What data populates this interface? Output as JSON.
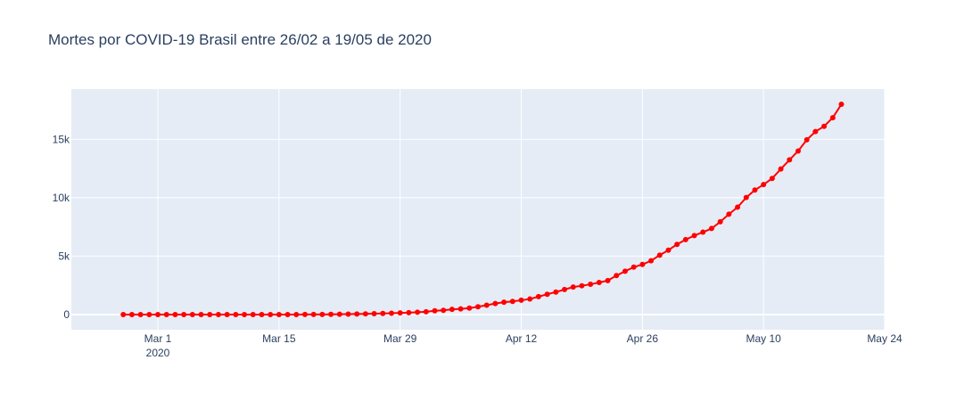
{
  "chart_data": {
    "type": "line",
    "title": "Mortes por COVID-19 Brasil entre 26/02 a 19/05 de 2020",
    "xlabel": "",
    "ylabel": "",
    "x_axis": {
      "type": "date",
      "range": [
        "2020-02-20",
        "2020-05-24"
      ],
      "ticks": [
        {
          "value": "2020-03-01",
          "label": "Mar 1",
          "sublabel": "2020"
        },
        {
          "value": "2020-03-15",
          "label": "Mar 15",
          "sublabel": ""
        },
        {
          "value": "2020-03-29",
          "label": "Mar 29",
          "sublabel": ""
        },
        {
          "value": "2020-04-12",
          "label": "Apr 12",
          "sublabel": ""
        },
        {
          "value": "2020-04-26",
          "label": "Apr 26",
          "sublabel": ""
        },
        {
          "value": "2020-05-10",
          "label": "May 10",
          "sublabel": ""
        },
        {
          "value": "2020-05-24",
          "label": "May 24",
          "sublabel": ""
        }
      ]
    },
    "y_axis": {
      "range": [
        -1300,
        19300
      ],
      "ticks": [
        {
          "value": 0,
          "label": "0"
        },
        {
          "value": 5000,
          "label": "5k"
        },
        {
          "value": 10000,
          "label": "10k"
        },
        {
          "value": 15000,
          "label": "15k"
        }
      ]
    },
    "grid": true,
    "legend": "none",
    "colors": {
      "plot_background": "#e5ecf6",
      "grid": "#ffffff",
      "text": "#2a3f5f",
      "series": "#ff0000"
    },
    "series": [
      {
        "mode": "lines+markers",
        "x": [
          "2020-02-26",
          "2020-02-27",
          "2020-02-28",
          "2020-02-29",
          "2020-03-01",
          "2020-03-02",
          "2020-03-03",
          "2020-03-04",
          "2020-03-05",
          "2020-03-06",
          "2020-03-07",
          "2020-03-08",
          "2020-03-09",
          "2020-03-10",
          "2020-03-11",
          "2020-03-12",
          "2020-03-13",
          "2020-03-14",
          "2020-03-15",
          "2020-03-16",
          "2020-03-17",
          "2020-03-18",
          "2020-03-19",
          "2020-03-20",
          "2020-03-21",
          "2020-03-22",
          "2020-03-23",
          "2020-03-24",
          "2020-03-25",
          "2020-03-26",
          "2020-03-27",
          "2020-03-28",
          "2020-03-29",
          "2020-03-30",
          "2020-03-31",
          "2020-04-01",
          "2020-04-02",
          "2020-04-03",
          "2020-04-04",
          "2020-04-05",
          "2020-04-06",
          "2020-04-07",
          "2020-04-08",
          "2020-04-09",
          "2020-04-10",
          "2020-04-11",
          "2020-04-12",
          "2020-04-13",
          "2020-04-14",
          "2020-04-15",
          "2020-04-16",
          "2020-04-17",
          "2020-04-18",
          "2020-04-19",
          "2020-04-20",
          "2020-04-21",
          "2020-04-22",
          "2020-04-23",
          "2020-04-24",
          "2020-04-25",
          "2020-04-26",
          "2020-04-27",
          "2020-04-28",
          "2020-04-29",
          "2020-04-30",
          "2020-05-01",
          "2020-05-02",
          "2020-05-03",
          "2020-05-04",
          "2020-05-05",
          "2020-05-06",
          "2020-05-07",
          "2020-05-08",
          "2020-05-09",
          "2020-05-10",
          "2020-05-11",
          "2020-05-12",
          "2020-05-13",
          "2020-05-14",
          "2020-05-15",
          "2020-05-16",
          "2020-05-17",
          "2020-05-18",
          "2020-05-19"
        ],
        "y": [
          0,
          0,
          0,
          0,
          0,
          0,
          0,
          0,
          0,
          0,
          0,
          0,
          0,
          0,
          0,
          0,
          0,
          0,
          0,
          0,
          1,
          4,
          7,
          11,
          18,
          25,
          34,
          46,
          59,
          77,
          92,
          111,
          136,
          159,
          201,
          240,
          324,
          359,
          445,
          486,
          553,
          667,
          800,
          941,
          1056,
          1124,
          1223,
          1328,
          1532,
          1736,
          1924,
          2141,
          2354,
          2462,
          2587,
          2741,
          2906,
          3331,
          3704,
          4057,
          4286,
          4603,
          5083,
          5513,
          6006,
          6412,
          6761,
          7051,
          7367,
          7938,
          8588,
          9190,
          10017,
          10656,
          11123,
          11653,
          12461,
          13240,
          13999,
          14962,
          15662,
          16118,
          16853,
          18000
        ]
      }
    ]
  }
}
